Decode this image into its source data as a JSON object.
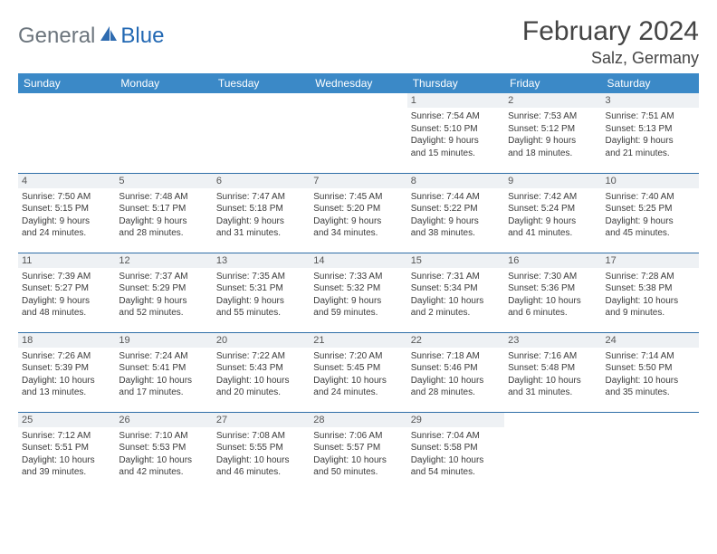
{
  "brand": {
    "general": "General",
    "blue": "Blue"
  },
  "title": "February 2024",
  "location": "Salz, Germany",
  "days": [
    "Sunday",
    "Monday",
    "Tuesday",
    "Wednesday",
    "Thursday",
    "Friday",
    "Saturday"
  ],
  "colors": {
    "header_bg": "#3b89c7",
    "header_fg": "#ffffff",
    "daynum_bg": "#eef1f4",
    "week_border": "#2f6fa8",
    "logo_gray": "#6c757d",
    "logo_blue": "#2268b3"
  },
  "weeks": [
    [
      null,
      null,
      null,
      null,
      {
        "n": "1",
        "sr": "Sunrise: 7:54 AM",
        "ss": "Sunset: 5:10 PM",
        "d1": "Daylight: 9 hours",
        "d2": "and 15 minutes."
      },
      {
        "n": "2",
        "sr": "Sunrise: 7:53 AM",
        "ss": "Sunset: 5:12 PM",
        "d1": "Daylight: 9 hours",
        "d2": "and 18 minutes."
      },
      {
        "n": "3",
        "sr": "Sunrise: 7:51 AM",
        "ss": "Sunset: 5:13 PM",
        "d1": "Daylight: 9 hours",
        "d2": "and 21 minutes."
      }
    ],
    [
      {
        "n": "4",
        "sr": "Sunrise: 7:50 AM",
        "ss": "Sunset: 5:15 PM",
        "d1": "Daylight: 9 hours",
        "d2": "and 24 minutes."
      },
      {
        "n": "5",
        "sr": "Sunrise: 7:48 AM",
        "ss": "Sunset: 5:17 PM",
        "d1": "Daylight: 9 hours",
        "d2": "and 28 minutes."
      },
      {
        "n": "6",
        "sr": "Sunrise: 7:47 AM",
        "ss": "Sunset: 5:18 PM",
        "d1": "Daylight: 9 hours",
        "d2": "and 31 minutes."
      },
      {
        "n": "7",
        "sr": "Sunrise: 7:45 AM",
        "ss": "Sunset: 5:20 PM",
        "d1": "Daylight: 9 hours",
        "d2": "and 34 minutes."
      },
      {
        "n": "8",
        "sr": "Sunrise: 7:44 AM",
        "ss": "Sunset: 5:22 PM",
        "d1": "Daylight: 9 hours",
        "d2": "and 38 minutes."
      },
      {
        "n": "9",
        "sr": "Sunrise: 7:42 AM",
        "ss": "Sunset: 5:24 PM",
        "d1": "Daylight: 9 hours",
        "d2": "and 41 minutes."
      },
      {
        "n": "10",
        "sr": "Sunrise: 7:40 AM",
        "ss": "Sunset: 5:25 PM",
        "d1": "Daylight: 9 hours",
        "d2": "and 45 minutes."
      }
    ],
    [
      {
        "n": "11",
        "sr": "Sunrise: 7:39 AM",
        "ss": "Sunset: 5:27 PM",
        "d1": "Daylight: 9 hours",
        "d2": "and 48 minutes."
      },
      {
        "n": "12",
        "sr": "Sunrise: 7:37 AM",
        "ss": "Sunset: 5:29 PM",
        "d1": "Daylight: 9 hours",
        "d2": "and 52 minutes."
      },
      {
        "n": "13",
        "sr": "Sunrise: 7:35 AM",
        "ss": "Sunset: 5:31 PM",
        "d1": "Daylight: 9 hours",
        "d2": "and 55 minutes."
      },
      {
        "n": "14",
        "sr": "Sunrise: 7:33 AM",
        "ss": "Sunset: 5:32 PM",
        "d1": "Daylight: 9 hours",
        "d2": "and 59 minutes."
      },
      {
        "n": "15",
        "sr": "Sunrise: 7:31 AM",
        "ss": "Sunset: 5:34 PM",
        "d1": "Daylight: 10 hours",
        "d2": "and 2 minutes."
      },
      {
        "n": "16",
        "sr": "Sunrise: 7:30 AM",
        "ss": "Sunset: 5:36 PM",
        "d1": "Daylight: 10 hours",
        "d2": "and 6 minutes."
      },
      {
        "n": "17",
        "sr": "Sunrise: 7:28 AM",
        "ss": "Sunset: 5:38 PM",
        "d1": "Daylight: 10 hours",
        "d2": "and 9 minutes."
      }
    ],
    [
      {
        "n": "18",
        "sr": "Sunrise: 7:26 AM",
        "ss": "Sunset: 5:39 PM",
        "d1": "Daylight: 10 hours",
        "d2": "and 13 minutes."
      },
      {
        "n": "19",
        "sr": "Sunrise: 7:24 AM",
        "ss": "Sunset: 5:41 PM",
        "d1": "Daylight: 10 hours",
        "d2": "and 17 minutes."
      },
      {
        "n": "20",
        "sr": "Sunrise: 7:22 AM",
        "ss": "Sunset: 5:43 PM",
        "d1": "Daylight: 10 hours",
        "d2": "and 20 minutes."
      },
      {
        "n": "21",
        "sr": "Sunrise: 7:20 AM",
        "ss": "Sunset: 5:45 PM",
        "d1": "Daylight: 10 hours",
        "d2": "and 24 minutes."
      },
      {
        "n": "22",
        "sr": "Sunrise: 7:18 AM",
        "ss": "Sunset: 5:46 PM",
        "d1": "Daylight: 10 hours",
        "d2": "and 28 minutes."
      },
      {
        "n": "23",
        "sr": "Sunrise: 7:16 AM",
        "ss": "Sunset: 5:48 PM",
        "d1": "Daylight: 10 hours",
        "d2": "and 31 minutes."
      },
      {
        "n": "24",
        "sr": "Sunrise: 7:14 AM",
        "ss": "Sunset: 5:50 PM",
        "d1": "Daylight: 10 hours",
        "d2": "and 35 minutes."
      }
    ],
    [
      {
        "n": "25",
        "sr": "Sunrise: 7:12 AM",
        "ss": "Sunset: 5:51 PM",
        "d1": "Daylight: 10 hours",
        "d2": "and 39 minutes."
      },
      {
        "n": "26",
        "sr": "Sunrise: 7:10 AM",
        "ss": "Sunset: 5:53 PM",
        "d1": "Daylight: 10 hours",
        "d2": "and 42 minutes."
      },
      {
        "n": "27",
        "sr": "Sunrise: 7:08 AM",
        "ss": "Sunset: 5:55 PM",
        "d1": "Daylight: 10 hours",
        "d2": "and 46 minutes."
      },
      {
        "n": "28",
        "sr": "Sunrise: 7:06 AM",
        "ss": "Sunset: 5:57 PM",
        "d1": "Daylight: 10 hours",
        "d2": "and 50 minutes."
      },
      {
        "n": "29",
        "sr": "Sunrise: 7:04 AM",
        "ss": "Sunset: 5:58 PM",
        "d1": "Daylight: 10 hours",
        "d2": "and 54 minutes."
      },
      null,
      null
    ]
  ]
}
